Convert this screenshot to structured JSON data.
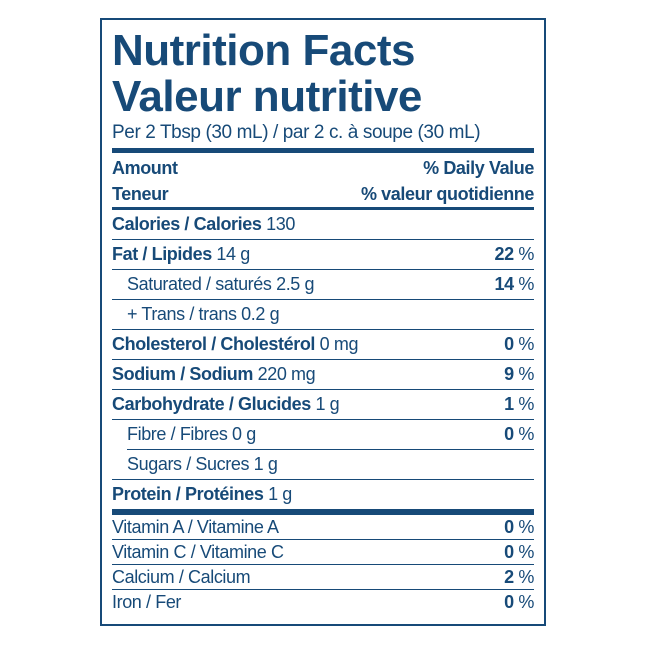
{
  "title_en": "Nutrition Facts",
  "title_fr": "Valeur nutritive",
  "serving": "Per 2 Tbsp (30 mL) / par 2 c. à soupe (30 mL)",
  "header": {
    "amount": "Amount",
    "teneur": "Teneur",
    "dv": "% Daily Value",
    "dv_fr": "% valeur quotidienne"
  },
  "color": "#174a78",
  "rows": [
    {
      "name": "Calories / Calories",
      "amount": "130",
      "dv": "",
      "unit": ""
    },
    {
      "name": "Fat / Lipides",
      "amount": "14 g",
      "dv": "22",
      "unit": "%"
    },
    {
      "name": "Saturated / saturés 2.5 g",
      "amount": "",
      "dv": "14",
      "unit": "%"
    },
    {
      "name": "+ Trans / trans 0.2 g",
      "amount": "",
      "dv": "",
      "unit": ""
    },
    {
      "name": "Cholesterol / Cholestérol",
      "amount": "0 mg",
      "dv": "0",
      "unit": "%"
    },
    {
      "name": "Sodium / Sodium",
      "amount": "220 mg",
      "dv": "9",
      "unit": "%"
    },
    {
      "name": "Carbohydrate / Glucides",
      "amount": "1 g",
      "dv": "1",
      "unit": "%"
    },
    {
      "name": "Fibre / Fibres 0 g",
      "amount": "",
      "dv": "0",
      "unit": "%"
    },
    {
      "name": "Sugars / Sucres 1 g",
      "amount": "",
      "dv": "",
      "unit": ""
    },
    {
      "name": "Protein / Protéines",
      "amount": "1 g",
      "dv": "",
      "unit": ""
    }
  ],
  "vitamins": [
    {
      "name": "Vitamin A / Vitamine A",
      "dv": "0",
      "unit": "%"
    },
    {
      "name": "Vitamin C / Vitamine C",
      "dv": "0",
      "unit": "%"
    },
    {
      "name": "Calcium / Calcium",
      "dv": "2",
      "unit": "%"
    },
    {
      "name": "Iron / Fer",
      "dv": "0",
      "unit": "%"
    }
  ]
}
